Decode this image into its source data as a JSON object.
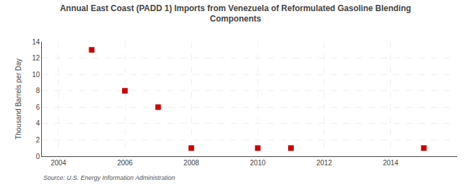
{
  "chart_data": {
    "type": "scatter",
    "title": "Annual East Coast (PADD 1) Imports from Venezuela of Reformulated Gasoline Blending\nComponents",
    "ylabel": "Thousand Barrels per Day",
    "annotations": [
      "Source: U.S. Energy Information Administration"
    ],
    "x": [
      2005,
      2006,
      2007,
      2008,
      2010,
      2011,
      2015
    ],
    "values": [
      13,
      8,
      6,
      1,
      1,
      1,
      1
    ],
    "color": "#cc0000",
    "marker": "square",
    "xlim": [
      2003.5,
      2016.0
    ],
    "ylim": [
      0,
      14
    ],
    "xticks": [
      2004,
      2006,
      2008,
      2010,
      2012,
      2014
    ],
    "yticks": [
      0,
      2,
      4,
      6,
      8,
      10,
      12,
      14
    ],
    "grid": true
  }
}
